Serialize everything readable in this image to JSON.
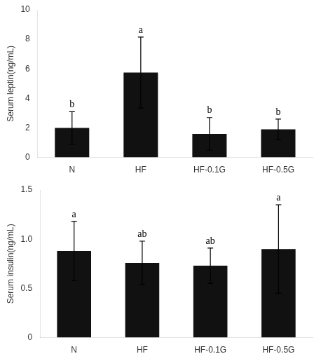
{
  "chart_data": [
    {
      "type": "bar",
      "categories": [
        "N",
        "HF",
        "HF-0.1G",
        "HF-0.5G"
      ],
      "values": [
        2.0,
        5.75,
        1.6,
        1.9
      ],
      "errors": [
        1.1,
        2.4,
        1.1,
        0.7
      ],
      "annotations": [
        "b",
        "a",
        "b",
        "b"
      ],
      "ylabel": "Serum leptin(ng/mL)",
      "ylim": [
        0,
        10
      ],
      "yticks": [
        0,
        2,
        4,
        6,
        8,
        10
      ],
      "color": "#111111",
      "grid": false
    },
    {
      "type": "bar",
      "categories": [
        "N",
        "HF",
        "HF-0.1G",
        "HF-0.5G"
      ],
      "values": [
        0.88,
        0.76,
        0.73,
        0.9
      ],
      "errors": [
        0.3,
        0.22,
        0.18,
        0.45
      ],
      "annotations": [
        "a",
        "ab",
        "ab",
        "a"
      ],
      "ylabel": "Serum insulin(ng/mL)",
      "ylim": [
        0,
        1.5
      ],
      "yticks": [
        0,
        0.5,
        {
          "value": 1.0,
          "label": "1.0"
        },
        1.5
      ],
      "color": "#111111",
      "grid": false
    }
  ]
}
